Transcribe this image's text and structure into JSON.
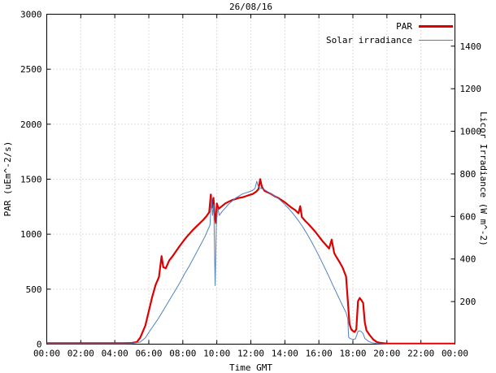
{
  "title": "26/08/16",
  "legend": {
    "par_label": "PAR",
    "solar_label": "Solar irradiance"
  },
  "chart_data": {
    "type": "line",
    "title": "26/08/16",
    "xlabel": "Time GMT",
    "ylabel_left": "PAR (uEm^-2/s)",
    "ylabel_right": "Licor Irradiance (W m^-2)",
    "grid": true,
    "legend_position": "top-right",
    "x_range_hours": [
      0,
      24
    ],
    "y_left_range": [
      0,
      3000
    ],
    "y_right_range": [
      0,
      1550
    ],
    "x_tick_hours": [
      0,
      2,
      4,
      6,
      8,
      10,
      12,
      14,
      16,
      18,
      20,
      22,
      24
    ],
    "x_tick_labels": [
      "00:00",
      "02:00",
      "04:00",
      "06:00",
      "08:00",
      "10:00",
      "12:00",
      "14:00",
      "16:00",
      "18:00",
      "20:00",
      "22:00",
      "00:00"
    ],
    "y_left_ticks": [
      0,
      500,
      1000,
      1500,
      2000,
      2500,
      3000
    ],
    "y_right_ticks": [
      200,
      400,
      600,
      800,
      1000,
      1200,
      1400
    ],
    "colors": {
      "par": "#dd0000",
      "solar": "#4f81bd",
      "grid": "#bcbcbc",
      "axis": "#000000"
    },
    "series": [
      {
        "name": "PAR",
        "axis": "left",
        "units": "uEm^-2/s",
        "color": "#dd0000",
        "width": 2.2,
        "points": [
          [
            0,
            8
          ],
          [
            0.5,
            8
          ],
          [
            1,
            8
          ],
          [
            1.5,
            8
          ],
          [
            2,
            8
          ],
          [
            2.5,
            8
          ],
          [
            3,
            8
          ],
          [
            3.5,
            8
          ],
          [
            4,
            8
          ],
          [
            4.5,
            8
          ],
          [
            5,
            10
          ],
          [
            5.3,
            20
          ],
          [
            5.5,
            60
          ],
          [
            5.8,
            170
          ],
          [
            6,
            300
          ],
          [
            6.2,
            430
          ],
          [
            6.4,
            540
          ],
          [
            6.6,
            610
          ],
          [
            6.75,
            800
          ],
          [
            6.85,
            700
          ],
          [
            7,
            690
          ],
          [
            7.2,
            760
          ],
          [
            7.4,
            800
          ],
          [
            7.6,
            845
          ],
          [
            7.8,
            890
          ],
          [
            8,
            930
          ],
          [
            8.2,
            970
          ],
          [
            8.4,
            1005
          ],
          [
            8.6,
            1040
          ],
          [
            8.8,
            1070
          ],
          [
            9,
            1100
          ],
          [
            9.2,
            1130
          ],
          [
            9.4,
            1165
          ],
          [
            9.55,
            1200
          ],
          [
            9.65,
            1360
          ],
          [
            9.72,
            1240
          ],
          [
            9.8,
            1330
          ],
          [
            9.88,
            1150
          ],
          [
            9.95,
            1100
          ],
          [
            10,
            1280
          ],
          [
            10.1,
            1230
          ],
          [
            10.3,
            1255
          ],
          [
            10.5,
            1280
          ],
          [
            10.7,
            1295
          ],
          [
            10.9,
            1310
          ],
          [
            11.1,
            1320
          ],
          [
            11.3,
            1330
          ],
          [
            11.5,
            1335
          ],
          [
            11.7,
            1345
          ],
          [
            11.9,
            1355
          ],
          [
            12.1,
            1365
          ],
          [
            12.3,
            1385
          ],
          [
            12.45,
            1410
          ],
          [
            12.55,
            1500
          ],
          [
            12.65,
            1430
          ],
          [
            12.8,
            1395
          ],
          [
            13,
            1380
          ],
          [
            13.2,
            1365
          ],
          [
            13.4,
            1345
          ],
          [
            13.6,
            1330
          ],
          [
            13.8,
            1310
          ],
          [
            14,
            1290
          ],
          [
            14.2,
            1265
          ],
          [
            14.4,
            1240
          ],
          [
            14.6,
            1220
          ],
          [
            14.8,
            1190
          ],
          [
            14.9,
            1255
          ],
          [
            15,
            1155
          ],
          [
            15.2,
            1120
          ],
          [
            15.4,
            1090
          ],
          [
            15.6,
            1055
          ],
          [
            15.8,
            1020
          ],
          [
            16,
            980
          ],
          [
            16.2,
            940
          ],
          [
            16.4,
            905
          ],
          [
            16.6,
            870
          ],
          [
            16.75,
            950
          ],
          [
            16.9,
            830
          ],
          [
            17,
            800
          ],
          [
            17.2,
            750
          ],
          [
            17.4,
            695
          ],
          [
            17.6,
            615
          ],
          [
            17.7,
            400
          ],
          [
            17.8,
            185
          ],
          [
            17.9,
            135
          ],
          [
            18,
            120
          ],
          [
            18.1,
            110
          ],
          [
            18.2,
            135
          ],
          [
            18.3,
            390
          ],
          [
            18.4,
            420
          ],
          [
            18.5,
            400
          ],
          [
            18.6,
            375
          ],
          [
            18.7,
            200
          ],
          [
            18.8,
            125
          ],
          [
            19,
            80
          ],
          [
            19.2,
            42
          ],
          [
            19.4,
            20
          ],
          [
            19.6,
            12
          ],
          [
            19.8,
            8
          ],
          [
            20,
            6
          ],
          [
            20.5,
            5
          ],
          [
            21,
            5
          ],
          [
            21.5,
            5
          ],
          [
            22,
            5
          ],
          [
            22.5,
            5
          ],
          [
            23,
            5
          ],
          [
            23.5,
            5
          ],
          [
            24,
            5
          ]
        ]
      },
      {
        "name": "Solar irradiance",
        "axis": "right",
        "units": "W m^-2",
        "color": "#4f81bd",
        "width": 1,
        "points": [
          [
            0,
            2
          ],
          [
            0.5,
            2
          ],
          [
            1,
            2
          ],
          [
            1.5,
            2
          ],
          [
            2,
            2
          ],
          [
            2.5,
            2
          ],
          [
            3,
            2
          ],
          [
            3.5,
            2
          ],
          [
            4,
            2
          ],
          [
            4.5,
            2
          ],
          [
            5,
            3
          ],
          [
            5.5,
            10
          ],
          [
            5.8,
            30
          ],
          [
            6,
            55
          ],
          [
            6.3,
            90
          ],
          [
            6.6,
            125
          ],
          [
            6.9,
            165
          ],
          [
            7.2,
            205
          ],
          [
            7.5,
            245
          ],
          [
            7.8,
            285
          ],
          [
            8.1,
            330
          ],
          [
            8.4,
            370
          ],
          [
            8.7,
            415
          ],
          [
            9,
            460
          ],
          [
            9.3,
            505
          ],
          [
            9.6,
            560
          ],
          [
            9.68,
            690
          ],
          [
            9.75,
            605
          ],
          [
            9.82,
            655
          ],
          [
            9.9,
            275
          ],
          [
            9.97,
            560
          ],
          [
            10.05,
            640
          ],
          [
            10.15,
            605
          ],
          [
            10.3,
            622
          ],
          [
            10.5,
            640
          ],
          [
            10.7,
            658
          ],
          [
            10.9,
            672
          ],
          [
            11.1,
            686
          ],
          [
            11.3,
            696
          ],
          [
            11.5,
            705
          ],
          [
            11.7,
            711
          ],
          [
            11.9,
            716
          ],
          [
            12.1,
            722
          ],
          [
            12.25,
            732
          ],
          [
            12.35,
            765
          ],
          [
            12.45,
            738
          ],
          [
            12.6,
            732
          ],
          [
            12.8,
            726
          ],
          [
            13,
            716
          ],
          [
            13.2,
            706
          ],
          [
            13.4,
            696
          ],
          [
            13.6,
            685
          ],
          [
            13.8,
            671
          ],
          [
            14,
            656
          ],
          [
            14.2,
            639
          ],
          [
            14.4,
            621
          ],
          [
            14.6,
            601
          ],
          [
            14.8,
            580
          ],
          [
            15,
            557
          ],
          [
            15.2,
            532
          ],
          [
            15.4,
            505
          ],
          [
            15.6,
            476
          ],
          [
            15.8,
            446
          ],
          [
            16,
            415
          ],
          [
            16.2,
            383
          ],
          [
            16.4,
            350
          ],
          [
            16.6,
            316
          ],
          [
            16.8,
            281
          ],
          [
            17,
            247
          ],
          [
            17.2,
            213
          ],
          [
            17.4,
            180
          ],
          [
            17.6,
            148
          ],
          [
            17.7,
            120
          ],
          [
            17.75,
            32
          ],
          [
            17.85,
            26
          ],
          [
            18,
            22
          ],
          [
            18.15,
            25
          ],
          [
            18.3,
            60
          ],
          [
            18.4,
            63
          ],
          [
            18.5,
            58
          ],
          [
            18.6,
            50
          ],
          [
            18.7,
            28
          ],
          [
            18.9,
            14
          ],
          [
            19.1,
            7
          ],
          [
            19.4,
            3
          ],
          [
            19.7,
            1
          ],
          [
            20,
            0
          ],
          [
            20.5,
            0
          ],
          [
            21,
            0
          ],
          [
            21.5,
            0
          ],
          [
            22,
            0
          ],
          [
            22.5,
            0
          ],
          [
            23,
            0
          ],
          [
            23.5,
            0
          ],
          [
            24,
            0
          ]
        ]
      }
    ]
  }
}
